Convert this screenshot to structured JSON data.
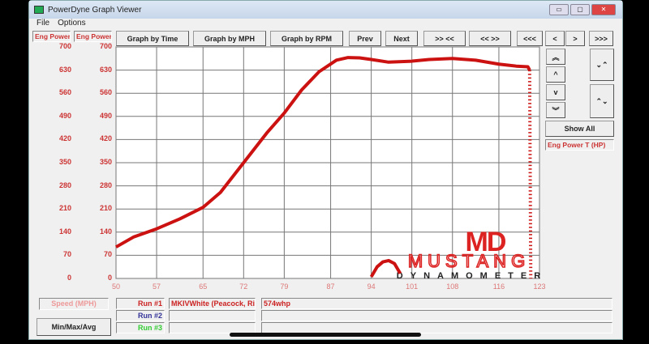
{
  "window": {
    "title": "PowerDyne Graph Viewer",
    "minimize": "▭",
    "maximize": "▢",
    "close": "✕"
  },
  "menu": [
    "File",
    "Options"
  ],
  "toolbar": {
    "graph_time": "Graph by Time",
    "graph_mph": "Graph by MPH",
    "graph_rpm": "Graph by RPM",
    "prev": "Prev",
    "next": "Next",
    "zoom_in": ">> <<",
    "zoom_out": "<< >>",
    "first": "<<<",
    "left": "<",
    "right": ">",
    "last": ">>>"
  },
  "side": {
    "up3": "︽",
    "up": "^",
    "down": "v",
    "down3": "︾",
    "expand": "⌄⌃",
    "shrink": "⌃⌄",
    "show_all": "Show All",
    "channel": "Eng Power T (HP)"
  },
  "axis_labels": {
    "left1": "Eng Power",
    "left2": "Eng Power"
  },
  "bottom": {
    "speed": "Speed (MPH)",
    "minmax": "Min/Max/Avg",
    "runs": [
      {
        "label": "Run #1",
        "name": "MKIVWhite (Peacock, Ric",
        "note": "574whp",
        "color": "#cc2222"
      },
      {
        "label": "Run #2",
        "name": "",
        "note": "",
        "color": "#333399"
      },
      {
        "label": "Run #3",
        "name": "",
        "note": "",
        "color": "#33cc33"
      }
    ]
  },
  "logo": {
    "text1": "MD",
    "text2": "MUSTANG",
    "text3": "DYNAMOMETER"
  },
  "chart_data": {
    "type": "line",
    "xlabel": "Speed (MPH)",
    "ylabel": "Eng Power",
    "xlim": [
      50,
      123
    ],
    "ylim": [
      0,
      700
    ],
    "xticks": [
      50,
      57,
      65,
      72,
      79,
      87,
      94,
      101,
      108,
      116,
      123
    ],
    "yticks": [
      700,
      630,
      560,
      490,
      420,
      350,
      280,
      210,
      140,
      70,
      0
    ],
    "grid": true,
    "color": "#cc1111",
    "series": [
      {
        "name": "Run #1",
        "x": [
          50,
          53,
          57,
          61,
          65,
          68,
          72,
          76,
          79,
          82,
          85,
          88,
          90,
          92,
          94,
          97,
          101,
          104,
          108,
          112,
          116,
          119,
          121,
          121.3,
          121.5
        ],
        "y": [
          95,
          125,
          150,
          180,
          215,
          260,
          350,
          440,
          500,
          570,
          625,
          660,
          668,
          667,
          662,
          654,
          657,
          662,
          665,
          660,
          648,
          642,
          640,
          630,
          0
        ]
      },
      {
        "name": "",
        "x": [
          94,
          95,
          96,
          97,
          98,
          99
        ],
        "y": [
          5,
          35,
          50,
          54,
          45,
          15
        ]
      }
    ]
  }
}
